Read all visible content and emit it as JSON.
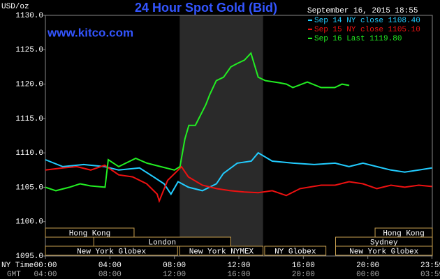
{
  "chart_data": {
    "type": "line",
    "title": "24 Hour Spot Gold (Bid)",
    "site": "www.kitco.com",
    "y_unit": "USD/oz",
    "timestamp": "September 16, 2015 18:55",
    "row_labels": [
      "NY Time",
      "GMT"
    ],
    "xlim": [
      0,
      24
    ],
    "xticks": [
      {
        "value": 0,
        "label": "00:00"
      },
      {
        "value": 4,
        "label": "04:00"
      },
      {
        "value": 8,
        "label": "08:00"
      },
      {
        "value": 12,
        "label": "12:00"
      },
      {
        "value": 16,
        "label": "16:00"
      },
      {
        "value": 20,
        "label": "20:00"
      },
      {
        "value": 23.98,
        "label": "23:59"
      }
    ],
    "xtick_gmt_labels": [
      "04:00",
      "08:00",
      "12:00",
      "16:00",
      "20:00",
      "00:00",
      "03:59"
    ],
    "ylim": [
      1095,
      1130
    ],
    "yticks": [
      {
        "value": 1095,
        "label": "1095.0"
      },
      {
        "value": 1100,
        "label": "1100.0"
      },
      {
        "value": 1105,
        "label": "1105.0"
      },
      {
        "value": 1110,
        "label": "1110.0"
      },
      {
        "value": 1115,
        "label": "1115.0"
      },
      {
        "value": 1120,
        "label": "1120.0"
      },
      {
        "value": 1125,
        "label": "1125.0"
      },
      {
        "value": 1130,
        "label": "1130.0"
      }
    ],
    "shade": [
      8.33,
      13.5
    ],
    "sessions": [
      {
        "name": "Hong Kong",
        "row": 0,
        "start": 0,
        "end": 5.5
      },
      {
        "name": "Hong Kong",
        "row": 0,
        "start": 20.45,
        "end": 24
      },
      {
        "name": "London",
        "row": 1,
        "start": 3.0,
        "end": 11.5
      },
      {
        "name": "Sydney",
        "row": 1,
        "start": 18.0,
        "end": 24
      },
      {
        "name": "New York Globex",
        "row": 2,
        "start": 0,
        "end": 8.2
      },
      {
        "name": "New York NYMEX",
        "row": 2,
        "start": 8.33,
        "end": 13.5
      },
      {
        "name": "NY Globex",
        "row": 2,
        "start": 13.6,
        "end": 17.4
      },
      {
        "name": "New York Globex",
        "row": 2,
        "start": 18.0,
        "end": 24
      }
    ],
    "series": [
      {
        "name": "Sep 14 NY close 1108.40",
        "color": "#22ccff",
        "x": [
          0,
          1.08,
          2.38,
          3.68,
          4.55,
          5.84,
          6.71,
          7.36,
          7.79,
          8.23,
          8.87,
          9.74,
          10.61,
          11.04,
          11.9,
          12.77,
          13.2,
          14.07,
          15.37,
          16.67,
          17.97,
          18.83,
          19.7,
          20.56,
          21.43,
          22.29,
          23.16,
          23.98
        ],
        "values": [
          1109.0,
          1108.0,
          1108.3,
          1108.0,
          1107.5,
          1107.8,
          1106.5,
          1105.5,
          1104.0,
          1105.8,
          1105.0,
          1104.5,
          1105.5,
          1107.0,
          1108.5,
          1108.8,
          1110.0,
          1108.8,
          1108.5,
          1108.3,
          1108.5,
          1108.0,
          1108.5,
          1108.0,
          1107.5,
          1107.2,
          1107.5,
          1107.8
        ]
      },
      {
        "name": "Sep 15 NY close 1105.10",
        "color": "#ee1111",
        "x": [
          0,
          1.08,
          1.95,
          2.81,
          3.68,
          4.55,
          5.41,
          6.28,
          6.93,
          7.06,
          7.58,
          8.23,
          8.44,
          8.87,
          9.74,
          10.61,
          11.47,
          12.34,
          13.2,
          14.07,
          14.94,
          15.8,
          17.1,
          17.97,
          18.83,
          19.7,
          20.56,
          21.43,
          22.29,
          23.16,
          23.98
        ],
        "values": [
          1107.5,
          1107.8,
          1108.0,
          1107.5,
          1108.2,
          1106.8,
          1106.5,
          1105.5,
          1104.0,
          1103.0,
          1106.0,
          1107.5,
          1108.0,
          1106.5,
          1105.3,
          1104.8,
          1104.5,
          1104.3,
          1104.2,
          1104.5,
          1103.8,
          1104.8,
          1105.3,
          1105.3,
          1105.8,
          1105.5,
          1104.8,
          1105.3,
          1105.0,
          1105.3,
          1105.1
        ]
      },
      {
        "name": "Sep 16 Last 1119.80",
        "color": "#22ee22",
        "x": [
          0,
          0.65,
          1.5,
          2.15,
          2.8,
          3.7,
          3.9,
          4.55,
          5.6,
          6.3,
          7.15,
          8.0,
          8.35,
          8.65,
          8.9,
          9.3,
          9.95,
          10.2,
          10.6,
          11.05,
          11.5,
          11.9,
          12.35,
          12.75,
          13.2,
          13.65,
          14.5,
          14.95,
          15.35,
          16.25,
          17.1,
          17.95,
          18.4,
          18.85
        ],
        "values": [
          1105.0,
          1104.5,
          1105.0,
          1105.5,
          1105.2,
          1105.0,
          1109.0,
          1108.0,
          1109.2,
          1108.5,
          1108.0,
          1107.5,
          1108.0,
          1112.0,
          1114.0,
          1114.0,
          1117.0,
          1118.5,
          1120.5,
          1121.0,
          1122.5,
          1123.0,
          1123.5,
          1124.5,
          1121.0,
          1120.5,
          1120.2,
          1120.0,
          1119.5,
          1120.3,
          1119.5,
          1119.5,
          1120.0,
          1119.8
        ]
      }
    ]
  }
}
